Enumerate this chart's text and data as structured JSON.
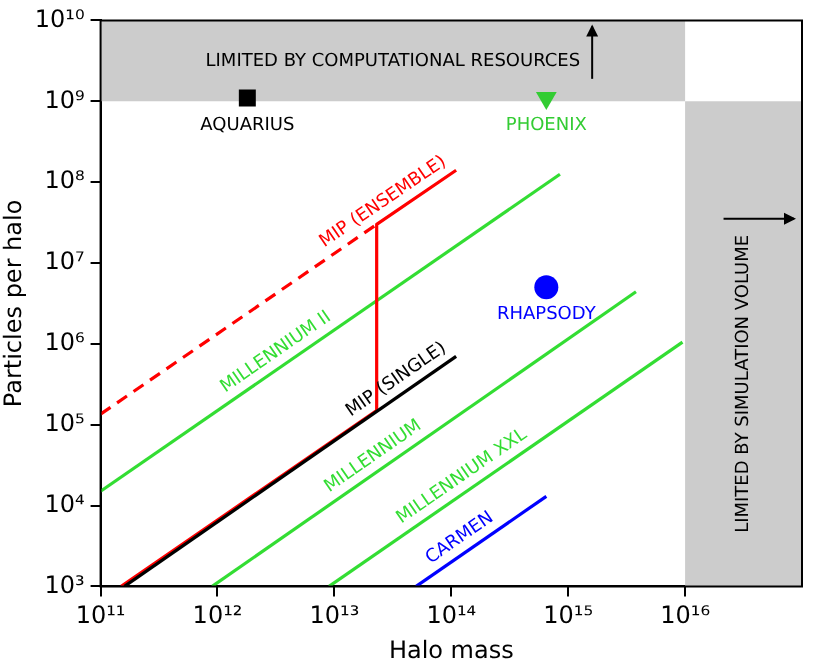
{
  "chart_data": {
    "type": "line",
    "xlabel": "Halo mass",
    "ylabel": "Particles per halo",
    "log": "xy",
    "grid": false,
    "legend": false,
    "xlim": [
      100000000000.0,
      1e+17
    ],
    "ylim": [
      1000.0,
      10000000000.0
    ],
    "xticks": [
      {
        "value": 100000000000.0,
        "label": "10¹¹"
      },
      {
        "value": 1000000000000.0,
        "label": "10¹²"
      },
      {
        "value": 10000000000000.0,
        "label": "10¹³"
      },
      {
        "value": 100000000000000.0,
        "label": "10¹⁴"
      },
      {
        "value": 1000000000000000.0,
        "label": "10¹⁵"
      },
      {
        "value": 1e+16,
        "label": "10¹⁶"
      }
    ],
    "yticks": [
      {
        "value": 1000.0,
        "label": "10³"
      },
      {
        "value": 10000.0,
        "label": "10⁴"
      },
      {
        "value": 100000.0,
        "label": "10⁵"
      },
      {
        "value": 1000000.0,
        "label": "10⁶"
      },
      {
        "value": 10000000.0,
        "label": "10⁷"
      },
      {
        "value": 100000000.0,
        "label": "10⁸"
      },
      {
        "value": 1000000000.0,
        "label": "10⁹"
      },
      {
        "value": 10000000000.0,
        "label": "10¹⁰"
      }
    ],
    "bands": [
      {
        "axis": "y",
        "from": 1000000000.0,
        "to": 10000000000.0,
        "label": "LIMITED BY COMPUTATIONAL RESOURCES",
        "color": "#cccccc"
      },
      {
        "axis": "x",
        "from": 1e+16,
        "to": 1e+17,
        "label": "LIMITED BY SIMULATION VOLUME",
        "color": "#cccccc"
      }
    ],
    "series": [
      {
        "name": "MIP (SINGLE)",
        "type": "line",
        "color": "#000000",
        "x": [
          160000000000.0,
          110000000000000.0
        ],
        "values": [
          1000.0,
          700000.0
        ]
      },
      {
        "name": "MIP (ENSEMBLE)",
        "type": "line",
        "color": "#ff0000",
        "x": [
          150000000000.0,
          23000000000000.0,
          23000000000000.0,
          110000000000000.0
        ],
        "values": [
          1000.0,
          150000.0,
          30000000.0,
          140000000.0
        ]
      },
      {
        "type": "line",
        "line_style": "dashed",
        "color": "#ff0000",
        "x": [
          100000000000.0,
          23000000000000.0
        ],
        "values": [
          135000.0,
          30000000.0
        ]
      },
      {
        "name": "MILLENNIUM II",
        "type": "line",
        "color": "#33dd33",
        "x": [
          100000000000.0,
          850000000000000.0
        ],
        "values": [
          15000.0,
          125000000.0
        ]
      },
      {
        "name": "MILLENNIUM",
        "type": "line",
        "color": "#33dd33",
        "x": [
          900000000000.0,
          3800000000000000.0
        ],
        "values": [
          1000.0,
          4400000.0
        ]
      },
      {
        "name": "MILLENNIUM XXL",
        "type": "line",
        "color": "#33dd33",
        "x": [
          9000000000000.0,
          9500000000000000.0
        ],
        "values": [
          1000.0,
          1050000.0
        ]
      },
      {
        "name": "CARMEN",
        "type": "line",
        "color": "#0000ff",
        "x": [
          50000000000000.0,
          650000000000000.0
        ],
        "values": [
          1000.0,
          13000.0
        ]
      },
      {
        "name": "AQUARIUS",
        "type": "scatter",
        "marker": "square",
        "color": "#000000",
        "x": [
          1800000000000.0
        ],
        "values": [
          1100000000.0
        ]
      },
      {
        "name": "PHOENIX",
        "type": "scatter",
        "marker": "triangle",
        "color": "#33cc33",
        "x": [
          650000000000000.0
        ],
        "values": [
          1100000000.0
        ]
      },
      {
        "name": "RHAPSODY",
        "type": "scatter",
        "marker": "circle",
        "color": "#0000ff",
        "x": [
          650000000000000.0
        ],
        "values": [
          5000000.0
        ]
      }
    ]
  }
}
